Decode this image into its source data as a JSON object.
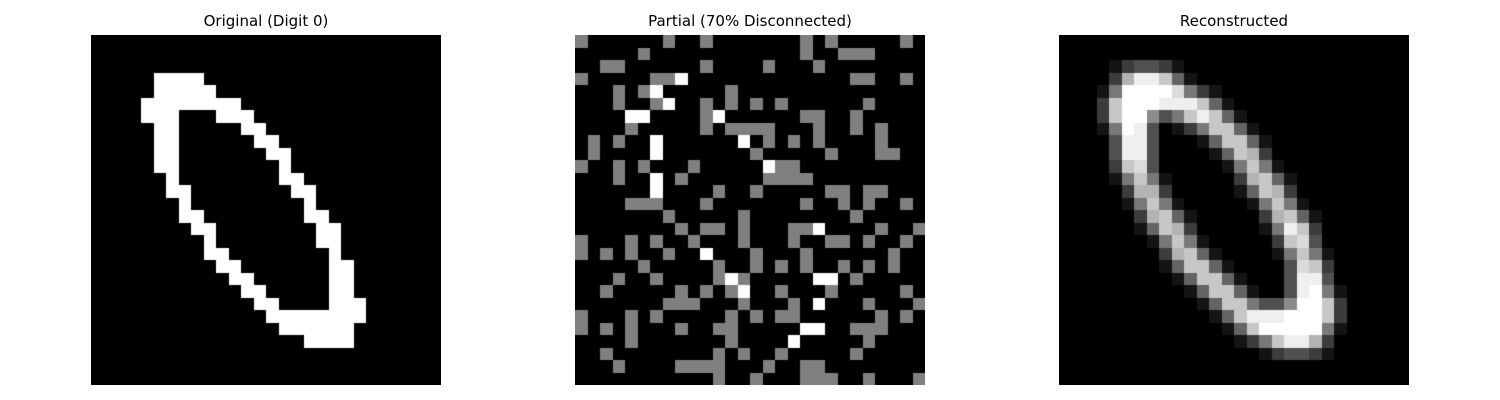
{
  "panels": [
    {
      "title": "Original (Digit 0)",
      "kind": "original"
    },
    {
      "title": "Partial (70% Disconnected)",
      "kind": "partial"
    },
    {
      "title": "Reconstructed",
      "kind": "reconstructed"
    }
  ],
  "colors": {
    "background": "#000000",
    "foreground": "#ffffff",
    "missing": "#808080"
  }
}
